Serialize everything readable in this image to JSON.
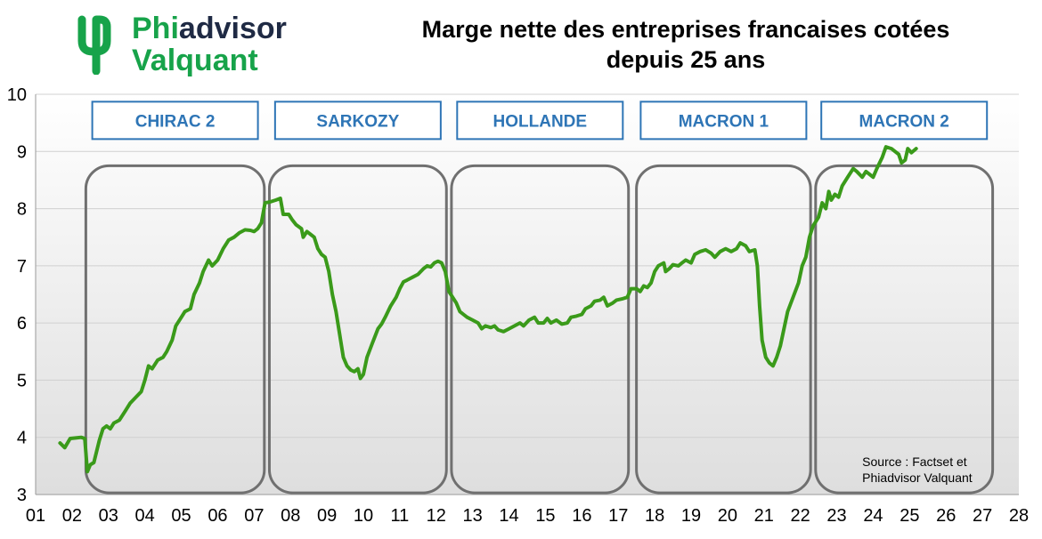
{
  "logo": {
    "line1_prefix": "Phi",
    "line1_rest": "advisor",
    "line2": "Valquant",
    "colors": {
      "green": "#17a34a",
      "navy": "#1f2a44"
    }
  },
  "chart_data": {
    "type": "line",
    "title_line1": "Marge nette des entreprises francaises cotées",
    "title_line2": "depuis 25 ans",
    "xlabel": "",
    "ylabel": "",
    "x_tick_labels": [
      "01",
      "02",
      "03",
      "04",
      "05",
      "06",
      "07",
      "08",
      "09",
      "10",
      "11",
      "12",
      "13",
      "14",
      "15",
      "16",
      "17",
      "18",
      "19",
      "20",
      "21",
      "22",
      "23",
      "24",
      "25",
      "26",
      "27",
      "28"
    ],
    "xlim": [
      2001,
      2028
    ],
    "ylim": [
      3,
      10
    ],
    "y_ticks": [
      3,
      4,
      5,
      6,
      7,
      8,
      9,
      10
    ],
    "grid": "horizontal",
    "line_color": "#3a9a1a",
    "series": [
      {
        "name": "",
        "points": [
          [
            2001.67,
            3.9
          ],
          [
            2001.8,
            3.82
          ],
          [
            2001.95,
            3.98
          ],
          [
            2002.1,
            3.99
          ],
          [
            2002.25,
            4.0
          ],
          [
            2002.35,
            3.98
          ],
          [
            2002.42,
            3.4
          ],
          [
            2002.5,
            3.52
          ],
          [
            2002.6,
            3.56
          ],
          [
            2002.75,
            3.95
          ],
          [
            2002.85,
            4.15
          ],
          [
            2002.95,
            4.2
          ],
          [
            2003.05,
            4.15
          ],
          [
            2003.15,
            4.25
          ],
          [
            2003.3,
            4.3
          ],
          [
            2003.45,
            4.45
          ],
          [
            2003.6,
            4.6
          ],
          [
            2003.75,
            4.7
          ],
          [
            2003.9,
            4.8
          ],
          [
            2004.0,
            5.0
          ],
          [
            2004.1,
            5.25
          ],
          [
            2004.2,
            5.2
          ],
          [
            2004.35,
            5.35
          ],
          [
            2004.5,
            5.4
          ],
          [
            2004.6,
            5.5
          ],
          [
            2004.75,
            5.7
          ],
          [
            2004.85,
            5.95
          ],
          [
            2005.0,
            6.1
          ],
          [
            2005.1,
            6.2
          ],
          [
            2005.25,
            6.25
          ],
          [
            2005.35,
            6.5
          ],
          [
            2005.5,
            6.7
          ],
          [
            2005.6,
            6.9
          ],
          [
            2005.75,
            7.1
          ],
          [
            2005.85,
            7.0
          ],
          [
            2006.0,
            7.1
          ],
          [
            2006.15,
            7.3
          ],
          [
            2006.3,
            7.45
          ],
          [
            2006.45,
            7.5
          ],
          [
            2006.6,
            7.58
          ],
          [
            2006.75,
            7.63
          ],
          [
            2006.9,
            7.62
          ],
          [
            2007.0,
            7.6
          ],
          [
            2007.1,
            7.65
          ],
          [
            2007.2,
            7.75
          ],
          [
            2007.3,
            8.1
          ],
          [
            2007.45,
            8.12
          ],
          [
            2007.6,
            8.15
          ],
          [
            2007.72,
            8.18
          ],
          [
            2007.8,
            7.9
          ],
          [
            2007.95,
            7.9
          ],
          [
            2008.05,
            7.8
          ],
          [
            2008.15,
            7.72
          ],
          [
            2008.3,
            7.65
          ],
          [
            2008.35,
            7.5
          ],
          [
            2008.45,
            7.6
          ],
          [
            2008.55,
            7.55
          ],
          [
            2008.65,
            7.5
          ],
          [
            2008.75,
            7.3
          ],
          [
            2008.85,
            7.2
          ],
          [
            2008.95,
            7.15
          ],
          [
            2009.05,
            6.9
          ],
          [
            2009.15,
            6.5
          ],
          [
            2009.25,
            6.2
          ],
          [
            2009.35,
            5.8
          ],
          [
            2009.45,
            5.4
          ],
          [
            2009.55,
            5.25
          ],
          [
            2009.65,
            5.18
          ],
          [
            2009.75,
            5.15
          ],
          [
            2009.85,
            5.2
          ],
          [
            2009.92,
            5.03
          ],
          [
            2010.0,
            5.1
          ],
          [
            2010.1,
            5.4
          ],
          [
            2010.25,
            5.65
          ],
          [
            2010.4,
            5.9
          ],
          [
            2010.5,
            5.98
          ],
          [
            2010.6,
            6.1
          ],
          [
            2010.75,
            6.3
          ],
          [
            2010.9,
            6.45
          ],
          [
            2011.0,
            6.6
          ],
          [
            2011.1,
            6.72
          ],
          [
            2011.2,
            6.75
          ],
          [
            2011.35,
            6.8
          ],
          [
            2011.5,
            6.85
          ],
          [
            2011.65,
            6.95
          ],
          [
            2011.75,
            7.0
          ],
          [
            2011.85,
            6.98
          ],
          [
            2011.95,
            7.05
          ],
          [
            2012.05,
            7.08
          ],
          [
            2012.15,
            7.05
          ],
          [
            2012.25,
            6.9
          ],
          [
            2012.35,
            6.55
          ],
          [
            2012.45,
            6.45
          ],
          [
            2012.55,
            6.35
          ],
          [
            2012.65,
            6.2
          ],
          [
            2012.75,
            6.15
          ],
          [
            2012.85,
            6.1
          ],
          [
            2013.0,
            6.05
          ],
          [
            2013.15,
            6.0
          ],
          [
            2013.25,
            5.9
          ],
          [
            2013.35,
            5.95
          ],
          [
            2013.5,
            5.92
          ],
          [
            2013.6,
            5.95
          ],
          [
            2013.7,
            5.88
          ],
          [
            2013.85,
            5.85
          ],
          [
            2014.0,
            5.9
          ],
          [
            2014.15,
            5.95
          ],
          [
            2014.3,
            6.0
          ],
          [
            2014.4,
            5.95
          ],
          [
            2014.55,
            6.05
          ],
          [
            2014.7,
            6.1
          ],
          [
            2014.8,
            6.0
          ],
          [
            2014.95,
            6.0
          ],
          [
            2015.05,
            6.08
          ],
          [
            2015.15,
            6.0
          ],
          [
            2015.3,
            6.05
          ],
          [
            2015.45,
            5.98
          ],
          [
            2015.6,
            6.0
          ],
          [
            2015.7,
            6.1
          ],
          [
            2015.85,
            6.12
          ],
          [
            2016.0,
            6.15
          ],
          [
            2016.1,
            6.25
          ],
          [
            2016.25,
            6.3
          ],
          [
            2016.35,
            6.38
          ],
          [
            2016.5,
            6.4
          ],
          [
            2016.6,
            6.45
          ],
          [
            2016.7,
            6.3
          ],
          [
            2016.85,
            6.35
          ],
          [
            2016.95,
            6.4
          ],
          [
            2017.1,
            6.42
          ],
          [
            2017.25,
            6.45
          ],
          [
            2017.35,
            6.6
          ],
          [
            2017.5,
            6.6
          ],
          [
            2017.6,
            6.55
          ],
          [
            2017.7,
            6.65
          ],
          [
            2017.8,
            6.62
          ],
          [
            2017.9,
            6.7
          ],
          [
            2018.0,
            6.9
          ],
          [
            2018.1,
            7.0
          ],
          [
            2018.25,
            7.05
          ],
          [
            2018.3,
            6.9
          ],
          [
            2018.4,
            6.95
          ],
          [
            2018.5,
            7.02
          ],
          [
            2018.65,
            7.0
          ],
          [
            2018.75,
            7.05
          ],
          [
            2018.85,
            7.1
          ],
          [
            2019.0,
            7.05
          ],
          [
            2019.1,
            7.2
          ],
          [
            2019.25,
            7.25
          ],
          [
            2019.4,
            7.28
          ],
          [
            2019.55,
            7.22
          ],
          [
            2019.65,
            7.15
          ],
          [
            2019.8,
            7.25
          ],
          [
            2019.95,
            7.3
          ],
          [
            2020.1,
            7.25
          ],
          [
            2020.25,
            7.3
          ],
          [
            2020.35,
            7.4
          ],
          [
            2020.5,
            7.35
          ],
          [
            2020.6,
            7.25
          ],
          [
            2020.75,
            7.28
          ],
          [
            2020.82,
            7.0
          ],
          [
            2020.88,
            6.3
          ],
          [
            2020.95,
            5.7
          ],
          [
            2021.05,
            5.4
          ],
          [
            2021.15,
            5.3
          ],
          [
            2021.25,
            5.25
          ],
          [
            2021.35,
            5.4
          ],
          [
            2021.45,
            5.6
          ],
          [
            2021.55,
            5.9
          ],
          [
            2021.65,
            6.2
          ],
          [
            2021.8,
            6.45
          ],
          [
            2021.95,
            6.7
          ],
          [
            2022.05,
            7.0
          ],
          [
            2022.15,
            7.15
          ],
          [
            2022.25,
            7.5
          ],
          [
            2022.35,
            7.7
          ],
          [
            2022.5,
            7.85
          ],
          [
            2022.6,
            8.1
          ],
          [
            2022.7,
            8.0
          ],
          [
            2022.78,
            8.3
          ],
          [
            2022.85,
            8.15
          ],
          [
            2022.95,
            8.25
          ],
          [
            2023.05,
            8.2
          ],
          [
            2023.15,
            8.4
          ],
          [
            2023.3,
            8.55
          ],
          [
            2023.45,
            8.7
          ],
          [
            2023.55,
            8.65
          ],
          [
            2023.7,
            8.55
          ],
          [
            2023.8,
            8.65
          ],
          [
            2023.9,
            8.6
          ],
          [
            2024.0,
            8.55
          ],
          [
            2024.1,
            8.7
          ],
          [
            2024.25,
            8.9
          ],
          [
            2024.35,
            9.08
          ],
          [
            2024.5,
            9.05
          ],
          [
            2024.6,
            9.0
          ],
          [
            2024.7,
            8.95
          ],
          [
            2024.78,
            8.8
          ],
          [
            2024.88,
            8.85
          ],
          [
            2024.95,
            9.05
          ],
          [
            2025.05,
            8.98
          ],
          [
            2025.18,
            9.05
          ]
        ]
      }
    ],
    "annotations": [
      {
        "label": "CHIRAC 2",
        "x_start": 2002.33,
        "x_end": 2007.33
      },
      {
        "label": "SARKOZY",
        "x_start": 2007.37,
        "x_end": 2012.33
      },
      {
        "label": "HOLLANDE",
        "x_start": 2012.37,
        "x_end": 2017.33
      },
      {
        "label": "MACRON 1",
        "x_start": 2017.45,
        "x_end": 2022.33
      },
      {
        "label": "MACRON 2",
        "x_start": 2022.37,
        "x_end": 2027.33
      }
    ],
    "source_line1": "Source : Factset et",
    "source_line2": "Phiadvisor Valquant"
  }
}
